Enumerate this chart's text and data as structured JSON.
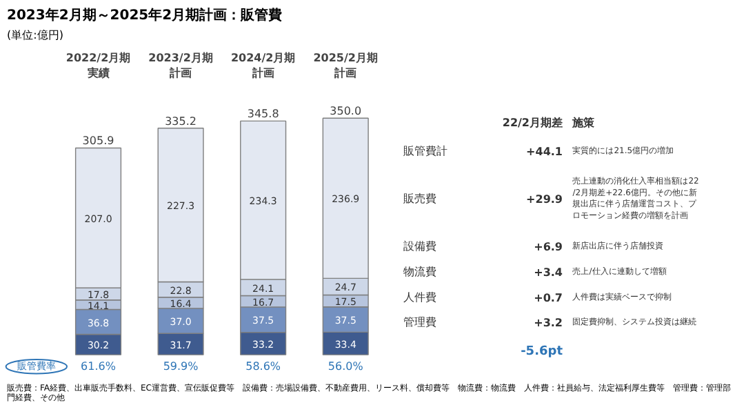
{
  "chart_data": {
    "type": "bar",
    "stacked": true,
    "title": "2023年2月期～2025年2月期計画：販管費",
    "categories": [
      "2022/2月期実績",
      "2023/2月期計画",
      "2024/2月期計画",
      "2025/2月期計画"
    ],
    "series": [
      {
        "name": "管理費",
        "color": "#3f5b8f",
        "values": [
          30.2,
          31.7,
          33.2,
          33.4
        ],
        "value_labels": [
          "30.2",
          "31.7",
          "33.2",
          "33.4"
        ]
      },
      {
        "name": "人件費",
        "color": "#7390c0",
        "values": [
          36.8,
          37.0,
          37.5,
          37.5
        ],
        "value_labels": [
          "36.8",
          "37.0",
          "37.5",
          "37.5"
        ]
      },
      {
        "name": "物流費",
        "color": "#b7c5de",
        "values": [
          14.1,
          16.4,
          16.7,
          17.5
        ],
        "value_labels": [
          "14.1",
          "16.4",
          "16.7",
          "17.5"
        ]
      },
      {
        "name": "設備費",
        "color": "#cdd7e8",
        "values": [
          17.8,
          22.8,
          24.1,
          24.7
        ],
        "value_labels": [
          "17.8",
          "22.8",
          "24.1",
          "24.7"
        ]
      },
      {
        "name": "販売費",
        "color": "#e3e8f2",
        "values": [
          207.0,
          227.3,
          234.3,
          236.9
        ],
        "value_labels": [
          "207.0",
          "227.3",
          "234.3",
          "236.9"
        ]
      }
    ],
    "totals": [
      "305.9",
      "335.2",
      "345.8",
      "350.0"
    ],
    "annotations": [
      "(単位:億円)",
      "22/2月期差",
      "施策",
      "販管費計",
      "+44.1",
      "実質的には21.5億円の増加",
      "+29.9",
      "売上連動の消化仕入率相当額は22/2月期差+22.6億円。その他に新規出店に伴う店舗運営コスト、プロモーション経費の増額を計画",
      "+6.9",
      "新店出店に伴う店舗投資",
      "+3.4",
      "売上/仕入に連動して増額",
      "+0.7",
      "人件費は実績ベースで抑制",
      "+3.2",
      "固定費抑制、システム投資は継続",
      "販管費率",
      "61.6%",
      "59.9%",
      "58.6%",
      "56.0%",
      "-5.6pt",
      "販売費：FA経費、出車販売手数料、EC運営費、宣伝販促費等　設備費：売場設備費、不動産費用、リース料、償却費等　物流費：物流費　人件費：社員給与、法定福利厚生費等　管理費：管理部門経費、その他"
    ]
  }
}
